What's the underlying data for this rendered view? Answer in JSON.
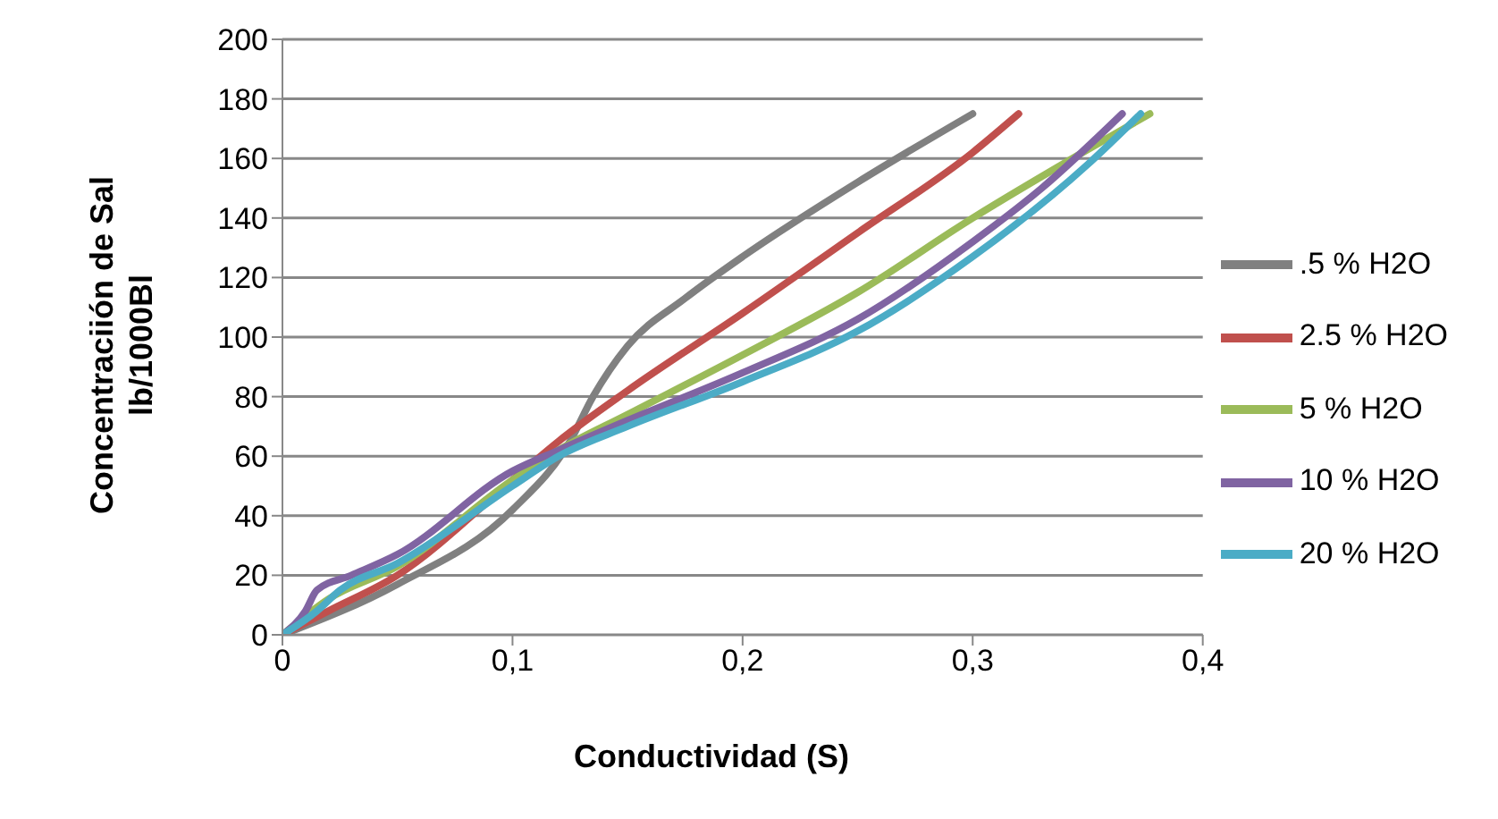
{
  "chart_data": {
    "type": "line",
    "xlabel": "Conductividad (S)",
    "ylabel": "Concentraciión de Sal lb/1000Bl",
    "xlim": [
      0,
      0.4
    ],
    "xticks": [
      {
        "value": 0,
        "label": "0"
      },
      {
        "value": 0.1,
        "label": "0,1"
      },
      {
        "value": 0.2,
        "label": "0,2"
      },
      {
        "value": 0.3,
        "label": "0,3"
      },
      {
        "value": 0.4,
        "label": "0,4"
      }
    ],
    "ylim": [
      0,
      200
    ],
    "yticks": [
      0,
      20,
      40,
      60,
      80,
      100,
      120,
      140,
      160,
      180,
      200
    ],
    "grid": "y",
    "legend": "right",
    "marker": "none",
    "line_style": "solid",
    "series": [
      {
        "name": ".5 % H2O",
        "color": "#808080",
        "x": [
          0,
          0.05,
          0.1,
          0.125,
          0.135,
          0.15,
          0.175,
          0.2,
          0.25,
          0.3
        ],
        "values": [
          0,
          17,
          42,
          65,
          80,
          97,
          113,
          127,
          152,
          175
        ]
      },
      {
        "name": "2.5 % H2O",
        "color": "#c0504d",
        "x": [
          0,
          0.02,
          0.05,
          0.1,
          0.12,
          0.15,
          0.2,
          0.25,
          0.3,
          0.32
        ],
        "values": [
          0,
          8,
          20,
          52,
          65,
          82,
          108,
          135,
          162,
          175
        ]
      },
      {
        "name": "5 % H2O",
        "color": "#9bbb59",
        "x": [
          0,
          0.02,
          0.05,
          0.1,
          0.12,
          0.15,
          0.2,
          0.25,
          0.3,
          0.35,
          0.377
        ],
        "values": [
          0,
          12,
          23,
          52,
          62,
          74,
          94,
          115,
          140,
          163,
          175
        ]
      },
      {
        "name": "10 % H2O",
        "color": "#8064a2",
        "x": [
          0,
          0.01,
          0.015,
          0.03,
          0.05,
          0.1,
          0.12,
          0.15,
          0.2,
          0.25,
          0.3,
          0.33,
          0.365
        ],
        "values": [
          0,
          8,
          15,
          20,
          27,
          55,
          62,
          72,
          88,
          106,
          132,
          150,
          175
        ]
      },
      {
        "name": "20 % H2O",
        "color": "#4bacc6",
        "x": [
          0,
          0.015,
          0.025,
          0.05,
          0.1,
          0.12,
          0.15,
          0.2,
          0.25,
          0.3,
          0.35,
          0.373
        ],
        "values": [
          0,
          8,
          15,
          24,
          50,
          60,
          70,
          85,
          102,
          127,
          158,
          175
        ]
      }
    ]
  }
}
